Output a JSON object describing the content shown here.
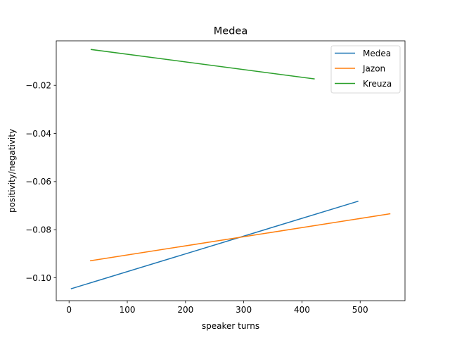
{
  "chart_data": {
    "type": "line",
    "title": "Medea",
    "xlabel": "speaker turns",
    "ylabel": "positivity/negativity",
    "xlim": [
      -22,
      577
    ],
    "ylim": [
      -0.1095,
      -0.0015
    ],
    "xticks": [
      0,
      100,
      200,
      300,
      400,
      500
    ],
    "yticks": [
      -0.1,
      -0.08,
      -0.06,
      -0.04,
      -0.02
    ],
    "xtick_labels": [
      "0",
      "100",
      "200",
      "300",
      "400",
      "500"
    ],
    "ytick_labels": [
      "−0.10",
      "−0.08",
      "−0.06",
      "−0.04",
      "−0.02"
    ],
    "grid": false,
    "legend_position": "top-right",
    "series": [
      {
        "name": "Medea",
        "color": "#1f77b4",
        "x": [
          4,
          496
        ],
        "y": [
          -0.1045,
          -0.0682
        ]
      },
      {
        "name": "Jazon",
        "color": "#ff7f0e",
        "x": [
          37,
          551
        ],
        "y": [
          -0.0929,
          -0.0734
        ]
      },
      {
        "name": "Kreuza",
        "color": "#2ca02c",
        "x": [
          38,
          421
        ],
        "y": [
          -0.0051,
          -0.0173
        ]
      }
    ]
  }
}
